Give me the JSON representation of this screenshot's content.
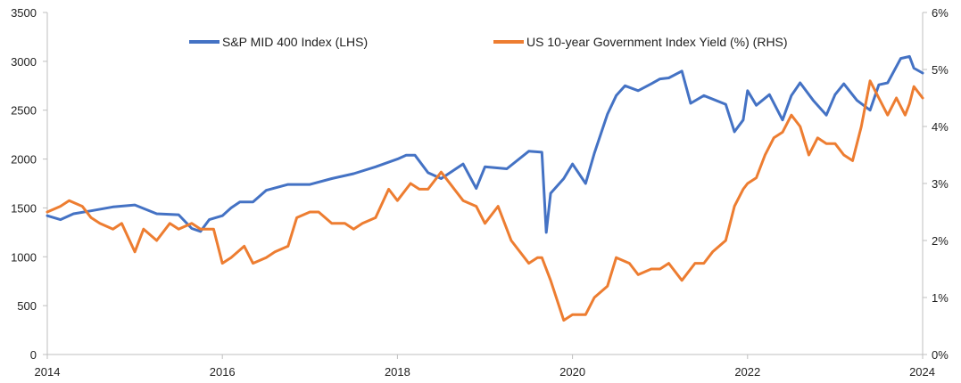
{
  "chart_data": {
    "type": "line",
    "title": "",
    "xlabel": "",
    "ylabel_left": "",
    "ylabel_right": "",
    "xlim": [
      2014,
      2024
    ],
    "x_ticks": [
      "2014",
      "2016",
      "2018",
      "2020",
      "2022",
      "2024"
    ],
    "ylim_left": [
      0,
      3500
    ],
    "y_ticks_left": [
      "0",
      "500",
      "1000",
      "1500",
      "2000",
      "2500",
      "3000",
      "3500"
    ],
    "ylim_right": [
      0,
      6
    ],
    "y_ticks_right": [
      "0%",
      "1%",
      "2%",
      "3%",
      "4%",
      "5%",
      "6%"
    ],
    "grid": false,
    "legend_position": "top",
    "series": [
      {
        "name": "S&P MID 400 Index (LHS)",
        "axis": "left",
        "color": "#4472C4",
        "x": [
          2014.0,
          2014.15,
          2014.3,
          2014.5,
          2014.75,
          2015.0,
          2015.25,
          2015.5,
          2015.65,
          2015.75,
          2015.85,
          2016.0,
          2016.1,
          2016.2,
          2016.35,
          2016.5,
          2016.75,
          2017.0,
          2017.25,
          2017.5,
          2017.75,
          2018.0,
          2018.1,
          2018.2,
          2018.35,
          2018.5,
          2018.75,
          2018.9,
          2019.0,
          2019.25,
          2019.5,
          2019.65,
          2019.7,
          2019.75,
          2019.9,
          2020.0,
          2020.15,
          2020.25,
          2020.4,
          2020.5,
          2020.6,
          2020.75,
          2020.9,
          2021.0,
          2021.1,
          2021.25,
          2021.35,
          2021.5,
          2021.75,
          2021.85,
          2021.95,
          2022.0,
          2022.1,
          2022.25,
          2022.4,
          2022.5,
          2022.6,
          2022.75,
          2022.9,
          2023.0,
          2023.1,
          2023.25,
          2023.4,
          2023.5,
          2023.6,
          2023.75,
          2023.85,
          2023.9,
          2024.0
        ],
        "values": [
          1420,
          1380,
          1440,
          1470,
          1510,
          1530,
          1440,
          1430,
          1290,
          1260,
          1380,
          1420,
          1500,
          1560,
          1560,
          1680,
          1740,
          1740,
          1800,
          1850,
          1920,
          2000,
          2040,
          2040,
          1860,
          1800,
          1950,
          1700,
          1920,
          1900,
          2080,
          2070,
          1250,
          1650,
          1800,
          1950,
          1750,
          2060,
          2460,
          2650,
          2750,
          2700,
          2770,
          2820,
          2830,
          2900,
          2570,
          2650,
          2560,
          2280,
          2400,
          2700,
          2550,
          2660,
          2400,
          2650,
          2780,
          2600,
          2450,
          2660,
          2770,
          2600,
          2500,
          2760,
          2780,
          3030,
          3050,
          2930,
          2880
        ]
      },
      {
        "name": "US 10-year Government Index Yield (%) (RHS)",
        "axis": "right",
        "color": "#ED7D31",
        "x": [
          2014.0,
          2014.15,
          2014.25,
          2014.4,
          2014.5,
          2014.6,
          2014.75,
          2014.85,
          2015.0,
          2015.1,
          2015.25,
          2015.4,
          2015.5,
          2015.65,
          2015.75,
          2015.9,
          2016.0,
          2016.1,
          2016.25,
          2016.35,
          2016.5,
          2016.6,
          2016.75,
          2016.85,
          2017.0,
          2017.1,
          2017.25,
          2017.4,
          2017.5,
          2017.6,
          2017.75,
          2017.9,
          2018.0,
          2018.15,
          2018.25,
          2018.35,
          2018.5,
          2018.65,
          2018.75,
          2018.9,
          2019.0,
          2019.15,
          2019.3,
          2019.5,
          2019.6,
          2019.65,
          2019.75,
          2019.9,
          2020.0,
          2020.15,
          2020.25,
          2020.4,
          2020.5,
          2020.65,
          2020.75,
          2020.9,
          2021.0,
          2021.1,
          2021.25,
          2021.4,
          2021.5,
          2021.6,
          2021.75,
          2021.85,
          2021.95,
          2022.0,
          2022.1,
          2022.2,
          2022.3,
          2022.4,
          2022.5,
          2022.6,
          2022.7,
          2022.8,
          2022.9,
          2023.0,
          2023.1,
          2023.2,
          2023.3,
          2023.4,
          2023.5,
          2023.6,
          2023.7,
          2023.8,
          2023.85,
          2023.9,
          2024.0
        ],
        "values": [
          2.5,
          2.6,
          2.7,
          2.6,
          2.4,
          2.3,
          2.2,
          2.3,
          1.8,
          2.2,
          2.0,
          2.3,
          2.2,
          2.3,
          2.2,
          2.2,
          1.6,
          1.7,
          1.9,
          1.6,
          1.7,
          1.8,
          1.9,
          2.4,
          2.5,
          2.5,
          2.3,
          2.3,
          2.2,
          2.3,
          2.4,
          2.9,
          2.7,
          3.0,
          2.9,
          2.9,
          3.2,
          2.9,
          2.7,
          2.6,
          2.3,
          2.6,
          2.0,
          1.6,
          1.7,
          1.7,
          1.3,
          0.6,
          0.7,
          0.7,
          1.0,
          1.2,
          1.7,
          1.6,
          1.4,
          1.5,
          1.5,
          1.6,
          1.3,
          1.6,
          1.6,
          1.8,
          2.0,
          2.6,
          2.9,
          3.0,
          3.1,
          3.5,
          3.8,
          3.9,
          4.2,
          4.0,
          3.5,
          3.8,
          3.7,
          3.7,
          3.5,
          3.4,
          4.0,
          4.8,
          4.5,
          4.2,
          4.5,
          4.2,
          4.4,
          4.7,
          4.5
        ]
      }
    ]
  }
}
